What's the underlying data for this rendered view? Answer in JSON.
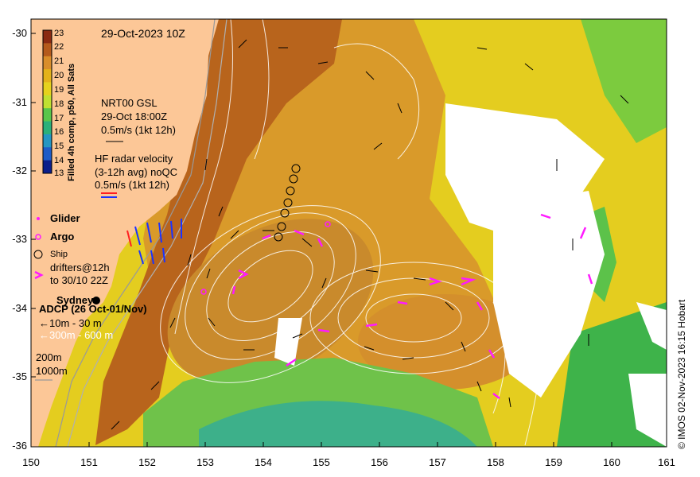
{
  "title": {
    "date": "29-Oct-2023 10Z"
  },
  "colorbar": {
    "label": "Filled 4h comp, p50, All Sats",
    "ticks": [
      "23",
      "22",
      "21",
      "20",
      "19",
      "18",
      "17",
      "16",
      "15",
      "14",
      "13"
    ],
    "colors": [
      "#8a2a12",
      "#b55a1c",
      "#d98d2a",
      "#e3b21a",
      "#e6d21d",
      "#bfe031",
      "#59c64a",
      "#2bb07a",
      "#2596c2",
      "#1f5cc7",
      "#0b1e8a"
    ]
  },
  "legend": {
    "nrt_title": "NRT00 GSL",
    "nrt_time": "29-Oct 18:00Z",
    "nrt_scale": "0.5m/s (1kt 12h)",
    "hf_title": "HF radar velocity",
    "hf_avg": "(3-12h avg) noQC",
    "hf_scale": "0.5m/s (1kt 12h)",
    "glider": "Glider",
    "argo": "Argo",
    "ship": "Ship",
    "drifters_1": "drifters@12h",
    "drifters_2": "to 30/10 22Z",
    "sydney": "Sydney",
    "adcp": "ADCP (26 Oct-01/Nov)",
    "adcp_shallow": "←10m - 30 m",
    "adcp_deep": "←300m - 600 m",
    "iso_200": "200m",
    "iso_1000": "1000m"
  },
  "axes": {
    "x_ticks": [
      "150",
      "151",
      "152",
      "153",
      "154",
      "155",
      "156",
      "157",
      "158",
      "159",
      "160",
      "161"
    ],
    "y_ticks": [
      "-30",
      "-31",
      "-32",
      "-33",
      "-34",
      "-35",
      "-36"
    ],
    "x_range": [
      150,
      161
    ],
    "y_range": [
      -36,
      -30
    ]
  },
  "copyright": "© IMOS 02-Nov-2023 16:15 Hobart",
  "colors": {
    "land": "#fcc797",
    "warm": "#b8641c",
    "eddy": "#c98a2c",
    "yellow": "#e4cd1f",
    "green": "#4fbe46",
    "drifter": "#ff1aff",
    "hf_red": "#ff2020",
    "hf_blue": "#1a33ff"
  }
}
